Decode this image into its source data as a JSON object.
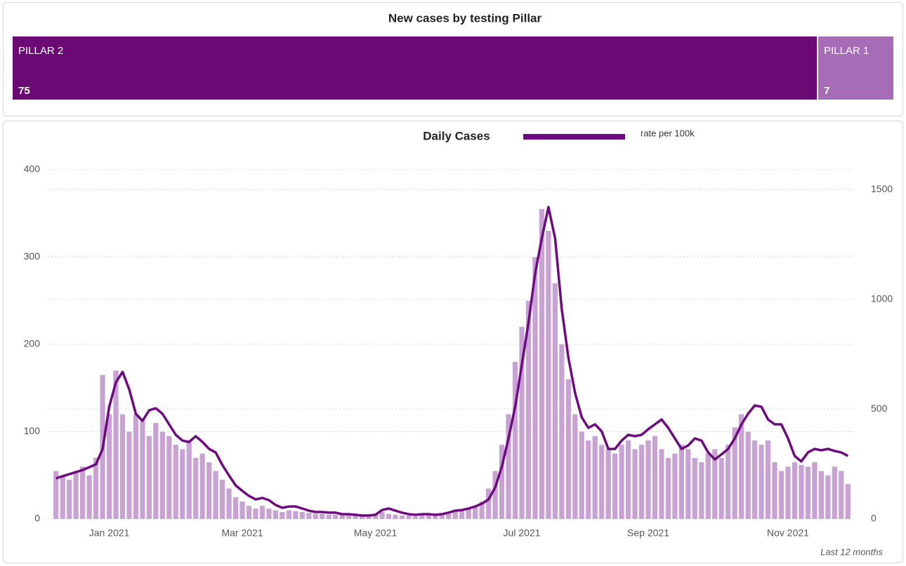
{
  "chart_data": [
    {
      "type": "stacked-hbar",
      "title": "New cases by testing Pillar",
      "series": [
        {
          "name": "PILLAR 2",
          "color": "#6b0a75",
          "values": [
            75
          ]
        },
        {
          "name": "PILLAR 1",
          "color": "#a66db6",
          "values": [
            7
          ]
        }
      ]
    },
    {
      "type": "bar-line",
      "annotation": "Last 12 months",
      "grid": true,
      "ylim": [
        0,
        400
      ],
      "yticks": [
        0,
        100,
        200,
        300,
        400
      ],
      "y2lim": [
        0,
        1590
      ],
      "y2ticks": [
        0,
        500,
        1000,
        1500
      ],
      "categories": [
        null,
        null,
        null,
        null,
        null,
        null,
        null,
        null,
        "Jan 2021",
        null,
        null,
        null,
        null,
        null,
        null,
        null,
        null,
        null,
        null,
        null,
        null,
        null,
        null,
        null,
        null,
        null,
        null,
        null,
        "Mar 2021",
        null,
        null,
        null,
        null,
        null,
        null,
        null,
        null,
        null,
        null,
        null,
        null,
        null,
        null,
        null,
        null,
        null,
        null,
        null,
        "May 2021",
        null,
        null,
        null,
        null,
        null,
        null,
        null,
        null,
        null,
        null,
        null,
        null,
        null,
        null,
        null,
        null,
        null,
        null,
        null,
        null,
        null,
        "Jul 2021",
        null,
        null,
        null,
        null,
        null,
        null,
        null,
        null,
        null,
        null,
        null,
        null,
        null,
        null,
        null,
        null,
        null,
        null,
        "Sep 2021",
        null,
        null,
        null,
        null,
        null,
        null,
        null,
        null,
        null,
        null,
        null,
        null,
        null,
        null,
        null,
        null,
        null,
        null,
        null,
        null,
        "Nov 2021",
        null,
        null,
        null,
        null,
        null,
        null,
        null,
        null,
        null
      ],
      "series": [
        {
          "name": "Daily Cases",
          "type": "bar",
          "color": "#c8a2d3",
          "values": [
            55,
            50,
            45,
            55,
            60,
            50,
            70,
            165,
            120,
            170,
            120,
            100,
            120,
            115,
            95,
            110,
            100,
            95,
            85,
            80,
            90,
            70,
            75,
            65,
            55,
            45,
            35,
            25,
            20,
            15,
            12,
            15,
            12,
            10,
            8,
            10,
            9,
            8,
            7,
            6,
            6,
            5,
            5,
            5,
            4,
            4,
            4,
            4,
            5,
            8,
            6,
            5,
            4,
            4,
            3,
            4,
            4,
            4,
            5,
            6,
            8,
            10,
            12,
            15,
            20,
            35,
            55,
            85,
            120,
            180,
            220,
            250,
            300,
            355,
            330,
            270,
            200,
            160,
            120,
            100,
            90,
            95,
            85,
            80,
            75,
            85,
            90,
            80,
            85,
            90,
            95,
            80,
            70,
            75,
            85,
            80,
            70,
            65,
            75,
            80,
            70,
            85,
            105,
            120,
            100,
            90,
            85,
            90,
            65,
            55,
            60,
            65,
            62,
            60,
            65,
            55,
            50,
            60,
            55,
            40
          ]
        },
        {
          "name": "rate per 100k",
          "type": "line",
          "axis": "y2",
          "color": "#6e0a80",
          "values": [
            185,
            195,
            204,
            214,
            223,
            236,
            249,
            319,
            511,
            622,
            670,
            590,
            479,
            447,
            495,
            504,
            479,
            431,
            383,
            357,
            351,
            377,
            351,
            319,
            303,
            246,
            198,
            153,
            128,
            105,
            89,
            96,
            86,
            64,
            51,
            57,
            57,
            48,
            38,
            32,
            32,
            29,
            29,
            22,
            22,
            19,
            16,
            16,
            19,
            41,
            48,
            38,
            29,
            22,
            19,
            22,
            22,
            19,
            22,
            29,
            38,
            41,
            48,
            57,
            70,
            89,
            144,
            239,
            367,
            511,
            702,
            894,
            1117,
            1277,
            1420,
            1277,
            957,
            734,
            574,
            463,
            415,
            431,
            399,
            319,
            319,
            357,
            383,
            377,
            383,
            409,
            431,
            453,
            415,
            367,
            319,
            335,
            367,
            357,
            303,
            271,
            294,
            319,
            367,
            431,
            479,
            517,
            511,
            453,
            431,
            431,
            367,
            287,
            262,
            303,
            319,
            313,
            319,
            310,
            303,
            287
          ]
        }
      ]
    }
  ]
}
